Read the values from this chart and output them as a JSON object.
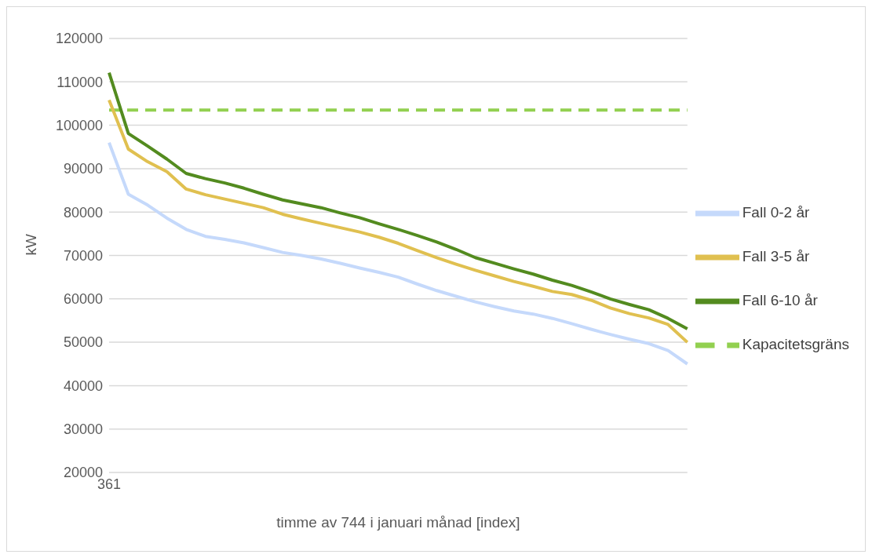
{
  "chart_data": {
    "type": "line",
    "xlabel": "timme av 744 i januari månad [index]",
    "ylabel": "kW",
    "categories": [
      "361",
      null,
      null,
      null,
      null,
      null,
      null,
      null,
      null,
      null,
      null,
      null,
      null,
      null,
      null,
      null,
      null,
      null,
      null,
      null,
      null,
      null,
      null,
      null,
      null,
      null,
      null,
      null,
      null,
      null,
      null
    ],
    "series": [
      {
        "name": "Kapacitetsgräns",
        "color": "#92d050",
        "line_style": "dashed",
        "values": [
          103500,
          103500,
          103500,
          103500,
          103500,
          103500,
          103500,
          103500,
          103500,
          103500,
          103500,
          103500,
          103500,
          103500,
          103500,
          103500,
          103500,
          103500,
          103500,
          103500,
          103500,
          103500,
          103500,
          103500,
          103500,
          103500,
          103500,
          103500,
          103500,
          103500,
          103500
        ]
      },
      {
        "name": "Fall 0-2 år",
        "color": "#c5d9fb",
        "values": [
          96000,
          84100,
          81600,
          78600,
          76000,
          74400,
          73700,
          72900,
          71800,
          70700,
          70000,
          69200,
          68200,
          67100,
          66100,
          65000,
          63400,
          61900,
          60600,
          59300,
          58200,
          57200,
          56500,
          55500,
          54300,
          53000,
          51800,
          50700,
          49700,
          48100,
          45000
        ]
      },
      {
        "name": "Fall 3-5 år",
        "color": "#e0c050",
        "values": [
          105800,
          94500,
          91600,
          89300,
          85300,
          84000,
          83000,
          82000,
          81000,
          79500,
          78400,
          77400,
          76400,
          75400,
          74200,
          72800,
          71100,
          69500,
          68000,
          66600,
          65300,
          64000,
          62900,
          61700,
          61000,
          59700,
          57900,
          56600,
          55600,
          54100,
          50000
        ]
      },
      {
        "name": "Fall 6-10 år",
        "color": "#538b1f",
        "values": [
          112100,
          98100,
          95200,
          92200,
          88900,
          87700,
          86700,
          85500,
          84100,
          82800,
          81900,
          81000,
          79800,
          78700,
          77300,
          76000,
          74600,
          73100,
          71400,
          69500,
          68200,
          66900,
          65700,
          64300,
          63100,
          61600,
          60000,
          58700,
          57500,
          55500,
          53100
        ]
      }
    ],
    "ylim": [
      20000,
      120000
    ],
    "yticks": [
      20000,
      30000,
      40000,
      50000,
      60000,
      70000,
      80000,
      90000,
      100000,
      110000,
      120000
    ],
    "grid": "y",
    "legend": "right",
    "marker": "none",
    "line_style": "solid"
  }
}
